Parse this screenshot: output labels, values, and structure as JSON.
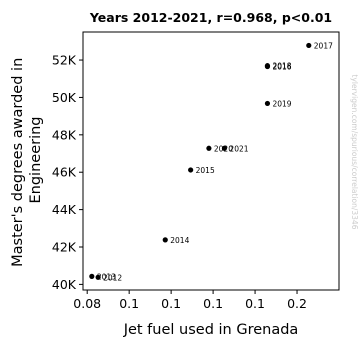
{
  "chart_data": {
    "type": "scatter",
    "title": "Years 2012-2021, r=0.968, p<0.01",
    "xlabel": "Jet fuel used in Grenada",
    "ylabel": "Master's degrees awarded in Engineering",
    "watermark": "tylervigen.com/spurious/correlation/3346",
    "xlim": [
      0.078,
      0.2
    ],
    "ylim": [
      39700,
      53500
    ],
    "x_ticks": [
      {
        "value": 0.08,
        "label": "0.08"
      },
      {
        "value": 0.1,
        "label": "0.1"
      },
      {
        "value": 0.12,
        "label": "0.1"
      },
      {
        "value": 0.14,
        "label": "0.1"
      },
      {
        "value": 0.16,
        "label": "0.1"
      },
      {
        "value": 0.18,
        "label": "0.2"
      }
    ],
    "y_ticks": [
      {
        "value": 40000,
        "label": "40K"
      },
      {
        "value": 42000,
        "label": "42K"
      },
      {
        "value": 44000,
        "label": "44K"
      },
      {
        "value": 46000,
        "label": "46K"
      },
      {
        "value": 48000,
        "label": "48K"
      },
      {
        "value": 50000,
        "label": "50K"
      },
      {
        "value": 52000,
        "label": "52K"
      }
    ],
    "point_color": "#000000",
    "points": [
      {
        "label": "2012",
        "x": 0.0852,
        "y": 40380
      },
      {
        "label": "2013",
        "x": 0.0822,
        "y": 40430
      },
      {
        "label": "2014",
        "x": 0.1172,
        "y": 42380
      },
      {
        "label": "2015",
        "x": 0.1293,
        "y": 46120
      },
      {
        "label": "2016",
        "x": 0.1659,
        "y": 51650
      },
      {
        "label": "2017",
        "x": 0.1856,
        "y": 52780
      },
      {
        "label": "2018",
        "x": 0.1659,
        "y": 51700
      },
      {
        "label": "2019",
        "x": 0.1659,
        "y": 49680
      },
      {
        "label": "2020",
        "x": 0.138,
        "y": 47280
      },
      {
        "label": "2021",
        "x": 0.1454,
        "y": 47280
      }
    ]
  }
}
